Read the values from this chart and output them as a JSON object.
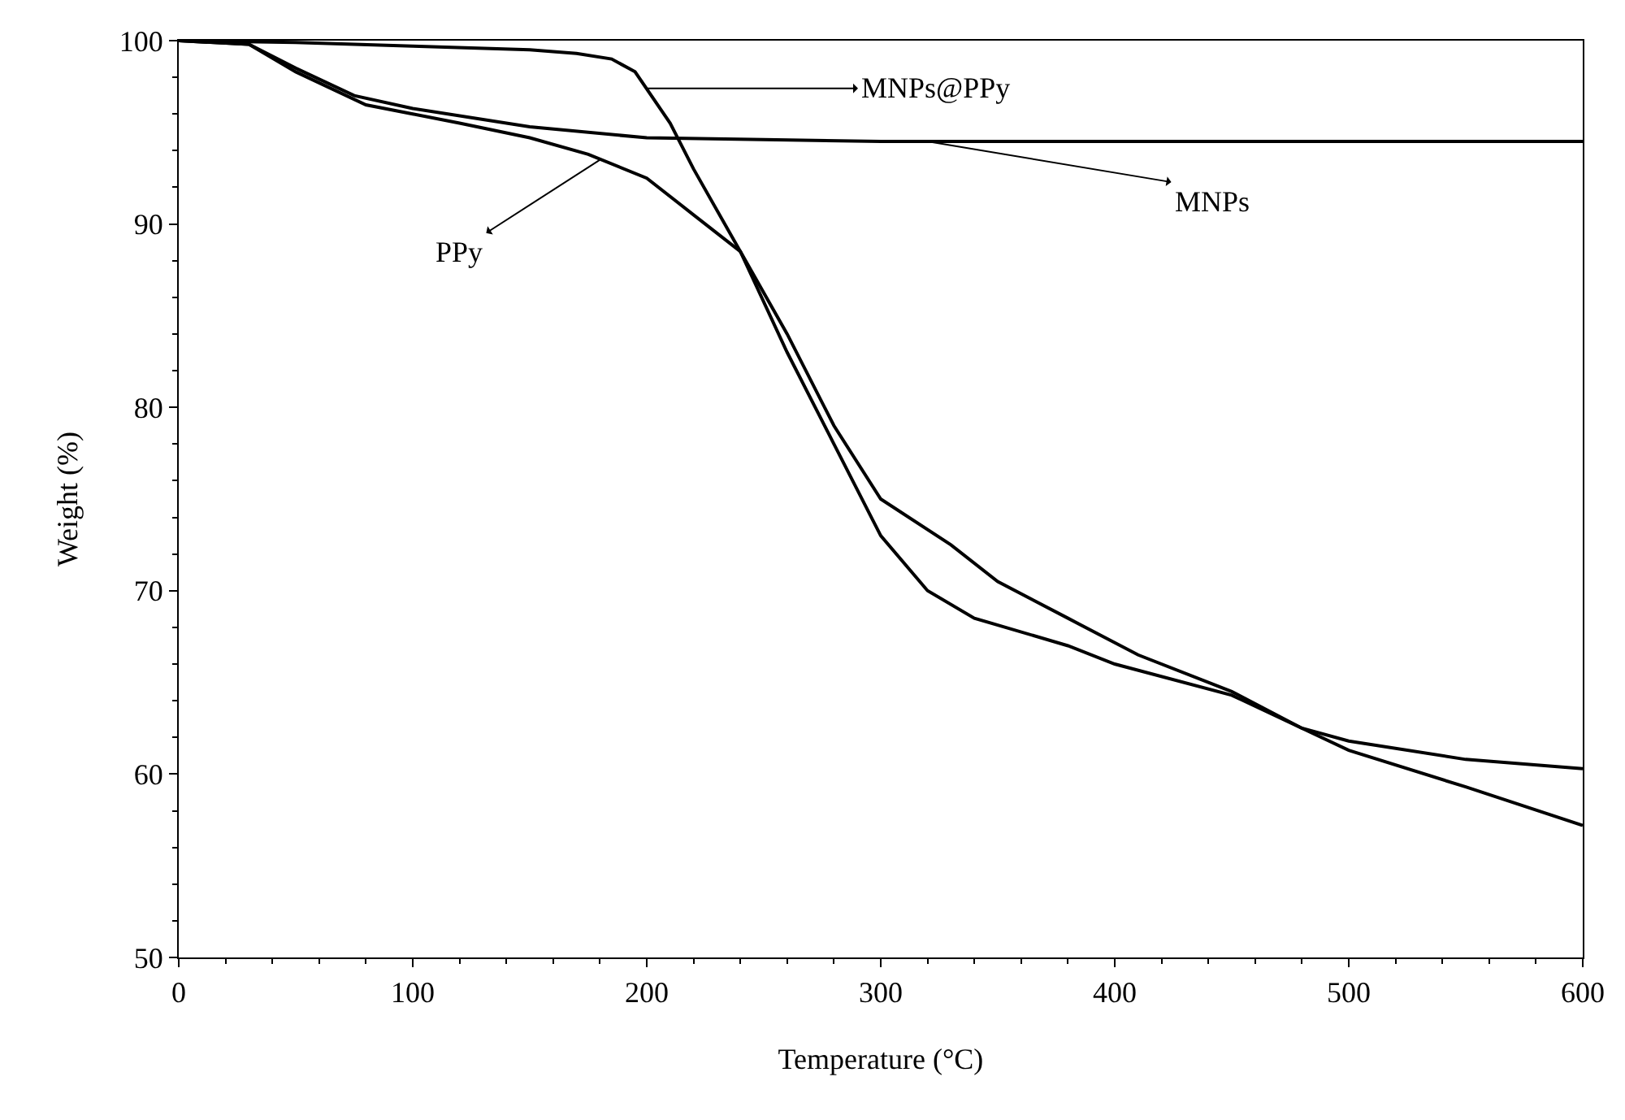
{
  "chart_data": {
    "type": "line",
    "xlabel": "Temperature (°C)",
    "ylabel": "Weight (%)",
    "xlim": [
      0,
      600
    ],
    "ylim": [
      50,
      100
    ],
    "xticks": [
      0,
      100,
      200,
      300,
      400,
      500,
      600
    ],
    "yticks": [
      50,
      60,
      70,
      80,
      90,
      100
    ],
    "marker": "none",
    "line_style": "solid",
    "series": [
      {
        "color": "#000000",
        "x": [
          0,
          30,
          50,
          80,
          100,
          120,
          150,
          175,
          200,
          220,
          240,
          260,
          280,
          300,
          330,
          350,
          380,
          410,
          450,
          480,
          500,
          550,
          600
        ],
        "values": [
          100,
          99.8,
          98.3,
          96.5,
          96,
          95.5,
          94.7,
          93.8,
          92.5,
          90.5,
          88.5,
          84,
          79,
          75,
          72.5,
          70.5,
          68.5,
          66.5,
          64.5,
          62.5,
          61.8,
          60.8,
          60.3
        ]
      },
      {
        "color": "#000000",
        "x": [
          0,
          30,
          50,
          75,
          100,
          150,
          200,
          250,
          300,
          400,
          500,
          600
        ],
        "values": [
          100,
          99.8,
          98.5,
          97,
          96.3,
          95.3,
          94.7,
          94.6,
          94.5,
          94.5,
          94.5,
          94.5
        ]
      },
      {
        "color": "#000000",
        "x": [
          0,
          50,
          100,
          150,
          170,
          185,
          195,
          210,
          220,
          240,
          260,
          280,
          300,
          320,
          340,
          380,
          400,
          450,
          480,
          500,
          550,
          600
        ],
        "values": [
          100,
          99.9,
          99.7,
          99.5,
          99.3,
          99,
          98.3,
          95.5,
          93,
          88.5,
          83,
          78,
          73,
          70,
          68.5,
          67,
          66,
          64.3,
          62.5,
          61.3,
          59.3,
          57.2
        ]
      }
    ],
    "annotations": [
      {
        "text": "PPy",
        "x": 180,
        "y": 93.5
      },
      {
        "text": "MNPs@PPy",
        "x": 200,
        "y": 97.4
      },
      {
        "text": "MNPs",
        "x": 320,
        "y": 94.5
      }
    ]
  }
}
